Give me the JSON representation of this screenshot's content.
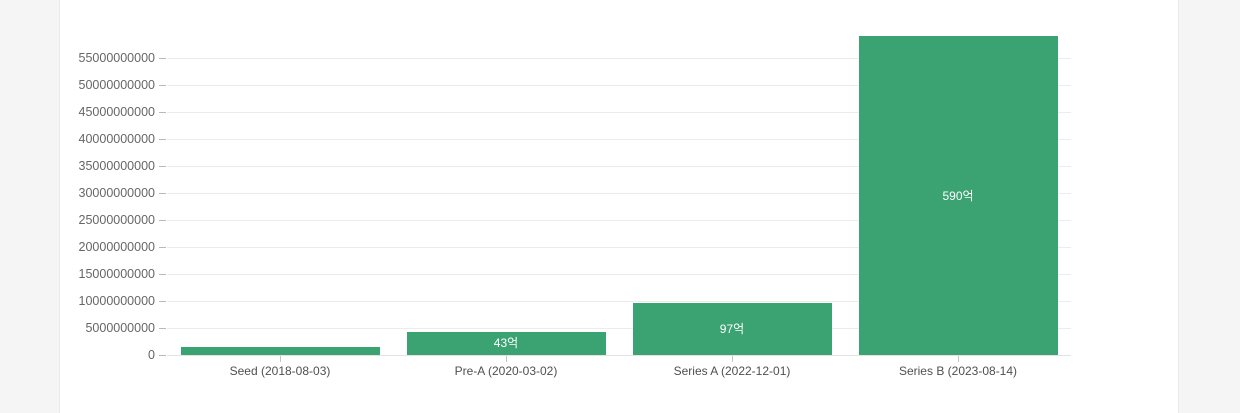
{
  "page": {
    "background_color": "#f5f5f5",
    "card_color": "#ffffff"
  },
  "chart_data": {
    "type": "bar",
    "title": "",
    "xlabel": "",
    "ylabel": "",
    "legend": false,
    "grid": true,
    "categories": [
      "Seed (2018-08-03)",
      "Pre-A (2020-03-02)",
      "Series A (2022-12-01)",
      "Series B (2023-08-14)"
    ],
    "values": [
      1400000000,
      4300000000,
      9700000000,
      59000000000
    ],
    "bar_labels": [
      "",
      "43억",
      "97억",
      "590억"
    ],
    "y_ticks": [
      0,
      5000000000,
      10000000000,
      15000000000,
      20000000000,
      25000000000,
      30000000000,
      35000000000,
      40000000000,
      45000000000,
      50000000000,
      55000000000
    ],
    "ylim": [
      0,
      59000000000
    ],
    "bar_color": "#3ba272",
    "bar_label_color": "#ffffff"
  }
}
